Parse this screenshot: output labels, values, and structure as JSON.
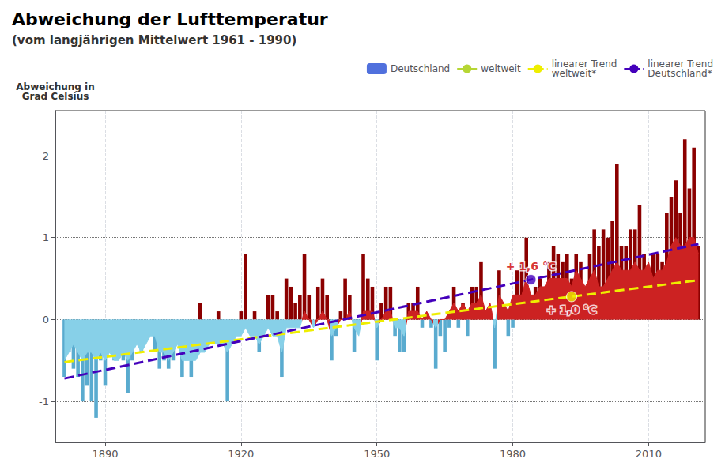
{
  "chart_data": {
    "type": "bar",
    "title": "Abweichung der Lufttemperatur",
    "subtitle": "(vom langjährigen Mittelwert 1961 - 1990)",
    "y_label": "Abweichung in\nGrad Celsius",
    "x": [
      1881,
      1882,
      1883,
      1884,
      1885,
      1886,
      1887,
      1888,
      1889,
      1890,
      1891,
      1892,
      1893,
      1894,
      1895,
      1896,
      1897,
      1898,
      1899,
      1900,
      1901,
      1902,
      1903,
      1904,
      1905,
      1906,
      1907,
      1908,
      1909,
      1910,
      1911,
      1912,
      1913,
      1914,
      1915,
      1916,
      1917,
      1918,
      1919,
      1920,
      1921,
      1922,
      1923,
      1924,
      1925,
      1926,
      1927,
      1928,
      1929,
      1930,
      1931,
      1932,
      1933,
      1934,
      1935,
      1936,
      1937,
      1938,
      1939,
      1940,
      1941,
      1942,
      1943,
      1944,
      1945,
      1946,
      1947,
      1948,
      1949,
      1950,
      1951,
      1952,
      1953,
      1954,
      1955,
      1956,
      1957,
      1958,
      1959,
      1960,
      1961,
      1962,
      1963,
      1964,
      1965,
      1966,
      1967,
      1968,
      1969,
      1970,
      1971,
      1972,
      1973,
      1974,
      1975,
      1976,
      1977,
      1978,
      1979,
      1980,
      1981,
      1982,
      1983,
      1984,
      1985,
      1986,
      1987,
      1988,
      1989,
      1990,
      1991,
      1992,
      1993,
      1994,
      1995,
      1996,
      1997,
      1998,
      1999,
      2000,
      2001,
      2002,
      2003,
      2004,
      2005,
      2006,
      2007,
      2008,
      2009,
      2010,
      2011,
      2012,
      2013,
      2014,
      2015,
      2016,
      2017,
      2018,
      2019,
      2020,
      2021
    ],
    "xlim": [
      1879,
      2022.5
    ],
    "xticks": [
      1890,
      1920,
      1950,
      1980,
      2010
    ],
    "ylim": [
      -1.5,
      2.55
    ],
    "yticks": [
      -1,
      0,
      1,
      2
    ],
    "grid": true,
    "legend": "top",
    "series": [
      {
        "name": "Deutschland",
        "type": "bar",
        "values": [
          -0.7,
          -0.4,
          -0.6,
          -0.7,
          -1.0,
          -0.8,
          -1.0,
          -1.2,
          -0.5,
          -0.8,
          -0.4,
          -0.5,
          -0.3,
          -0.5,
          -0.9,
          -0.5,
          -0.3,
          -0.4,
          -0.2,
          -0.1,
          -0.4,
          -0.6,
          -0.5,
          -0.6,
          -0.5,
          -0.1,
          -0.7,
          -0.5,
          -0.7,
          -0.3,
          0.2,
          -0.3,
          -0.2,
          -0.1,
          0.1,
          -0.3,
          -1.0,
          -0.1,
          -0.1,
          0.1,
          0.8,
          -0.1,
          0.1,
          -0.4,
          0.0,
          0.3,
          0.3,
          0.1,
          -0.7,
          0.5,
          0.4,
          0.2,
          0.3,
          0.8,
          0.3,
          0.0,
          0.4,
          0.5,
          0.3,
          -0.5,
          -0.2,
          0.1,
          0.5,
          0.3,
          -0.4,
          -0.1,
          0.8,
          0.5,
          0.4,
          -0.5,
          0.2,
          0.4,
          0.4,
          -0.2,
          -0.4,
          -0.4,
          0.2,
          0.2,
          0.4,
          -0.1,
          0.0,
          -0.1,
          -0.6,
          -0.2,
          -0.4,
          -0.1,
          0.4,
          -0.1,
          0.2,
          -0.2,
          0.4,
          0.4,
          0.7,
          -0.0,
          0.1,
          -0.6,
          0.6,
          0.0,
          -0.2,
          -0.1,
          0.6,
          0.7,
          1.0,
          0.3,
          0.4,
          0.5,
          0.4,
          0.7,
          0.9,
          0.8,
          0.7,
          0.8,
          0.5,
          0.8,
          0.7,
          0.3,
          0.8,
          1.1,
          0.9,
          1.1,
          1.0,
          1.2,
          1.9,
          0.9,
          0.9,
          1.1,
          1.1,
          1.4,
          0.8,
          0.4,
          0.8,
          0.8,
          0.7,
          1.3,
          1.5,
          1.7,
          1.3,
          2.2,
          1.6,
          2.1,
          0.9
        ],
        "colors": [
          "#5aabcf",
          "#5aabcf",
          "#5aabcf",
          "#5aabcf",
          "#5aabcf",
          "#5aabcf",
          "#5aabcf",
          "#5aabcf",
          "#5aabcf",
          "#5aabcf",
          "#5aabcf",
          "#5aabcf",
          "#5aabcf",
          "#5aabcf",
          "#5aabcf",
          "#5aabcf",
          "#5aabcf",
          "#5aabcf",
          "#5aabcf",
          "#5aabcf",
          "#5aabcf",
          "#5aabcf",
          "#5aabcf",
          "#5aabcf",
          "#5aabcf",
          "#5aabcf",
          "#5aabcf",
          "#5aabcf",
          "#5aabcf",
          "#5aabcf",
          "#8b0000",
          "#5aabcf",
          "#5aabcf",
          "#5aabcf",
          "#8b0000",
          "#5aabcf",
          "#5aabcf",
          "#5aabcf",
          "#5aabcf",
          "#8b0000",
          "#8b0000",
          "#5aabcf",
          "#8b0000",
          "#5aabcf",
          "#8b0000",
          "#8b0000",
          "#8b0000",
          "#8b0000",
          "#5aabcf",
          "#8b0000",
          "#8b0000",
          "#8b0000",
          "#8b0000",
          "#8b0000",
          "#8b0000",
          "#8b0000",
          "#8b0000",
          "#8b0000",
          "#8b0000",
          "#5aabcf",
          "#5aabcf",
          "#8b0000",
          "#8b0000",
          "#8b0000",
          "#5aabcf",
          "#5aabcf",
          "#8b0000",
          "#8b0000",
          "#8b0000",
          "#5aabcf",
          "#8b0000",
          "#8b0000",
          "#8b0000",
          "#5aabcf",
          "#5aabcf",
          "#5aabcf",
          "#8b0000",
          "#8b0000",
          "#8b0000",
          "#5aabcf",
          "#8b0000",
          "#5aabcf",
          "#5aabcf",
          "#5aabcf",
          "#5aabcf",
          "#5aabcf",
          "#8b0000",
          "#5aabcf",
          "#8b0000",
          "#5aabcf",
          "#8b0000",
          "#8b0000",
          "#8b0000",
          "#8b0000",
          "#8b0000",
          "#5aabcf",
          "#8b0000",
          "#8b0000",
          "#5aabcf",
          "#5aabcf",
          "#8b0000",
          "#8b0000",
          "#8b0000",
          "#8b0000",
          "#8b0000",
          "#8b0000",
          "#8b0000",
          "#8b0000",
          "#8b0000",
          "#8b0000",
          "#8b0000",
          "#8b0000",
          "#8b0000",
          "#8b0000",
          "#8b0000",
          "#8b0000",
          "#8b0000",
          "#8b0000",
          "#8b0000",
          "#8b0000",
          "#8b0000",
          "#8b0000",
          "#8b0000",
          "#8b0000",
          "#8b0000",
          "#8b0000",
          "#8b0000",
          "#8b0000",
          "#8b0000",
          "#8b0000",
          "#8b0000",
          "#8b0000",
          "#8b0000",
          "#8b0000",
          "#8b0000",
          "#8b0000",
          "#8b0000",
          "#8b0000",
          "#8b0000",
          "#8b0000",
          "#8b0000"
        ]
      },
      {
        "name": "weltweit",
        "type": "area",
        "values": [
          -0.5,
          -0.4,
          -0.3,
          -0.4,
          -0.5,
          -0.4,
          -0.4,
          -0.5,
          -0.4,
          -0.5,
          -0.4,
          -0.5,
          -0.5,
          -0.4,
          -0.5,
          -0.4,
          -0.3,
          -0.4,
          -0.3,
          -0.2,
          -0.2,
          -0.4,
          -0.4,
          -0.5,
          -0.4,
          -0.3,
          -0.5,
          -0.5,
          -0.5,
          -0.5,
          -0.4,
          -0.4,
          -0.3,
          -0.3,
          -0.3,
          -0.3,
          -0.4,
          -0.3,
          -0.2,
          -0.2,
          -0.1,
          -0.2,
          -0.2,
          -0.3,
          -0.2,
          -0.1,
          -0.2,
          -0.2,
          -0.4,
          -0.1,
          -0.1,
          -0.1,
          -0.1,
          0.1,
          0.0,
          -0.1,
          0.0,
          0.1,
          0.0,
          -0.2,
          -0.1,
          0.0,
          0.0,
          0.1,
          -0.1,
          -0.2,
          0.1,
          0.1,
          0.1,
          -0.1,
          0.0,
          0.1,
          0.1,
          -0.1,
          -0.1,
          -0.2,
          0.1,
          0.1,
          0.1,
          0.0,
          0.1,
          0.0,
          -0.1,
          0.0,
          0.0,
          0.1,
          0.2,
          0.1,
          0.2,
          0.1,
          0.2,
          0.2,
          0.3,
          0.1,
          0.2,
          -0.1,
          0.3,
          0.2,
          0.1,
          0.3,
          0.3,
          0.3,
          0.5,
          0.3,
          0.3,
          0.4,
          0.4,
          0.5,
          0.5,
          0.5,
          0.5,
          0.5,
          0.4,
          0.6,
          0.5,
          0.4,
          0.5,
          0.6,
          0.4,
          0.4,
          0.5,
          0.6,
          0.7,
          0.6,
          0.6,
          0.6,
          0.7,
          0.6,
          0.6,
          0.7,
          0.5,
          0.6,
          0.6,
          0.7,
          0.9,
          1.0,
          0.9,
          0.9,
          1.0,
          1.0,
          0.8
        ],
        "colors": [
          "#87d0e8",
          "#87d0e8",
          "#87d0e8",
          "#87d0e8",
          "#87d0e8",
          "#87d0e8",
          "#87d0e8",
          "#87d0e8",
          "#87d0e8",
          "#87d0e8",
          "#87d0e8",
          "#87d0e8",
          "#87d0e8",
          "#87d0e8",
          "#87d0e8",
          "#87d0e8",
          "#87d0e8",
          "#87d0e8",
          "#87d0e8",
          "#87d0e8",
          "#87d0e8",
          "#87d0e8",
          "#87d0e8",
          "#87d0e8",
          "#87d0e8",
          "#87d0e8",
          "#87d0e8",
          "#87d0e8",
          "#87d0e8",
          "#87d0e8",
          "#87d0e8",
          "#87d0e8",
          "#87d0e8",
          "#87d0e8",
          "#87d0e8",
          "#87d0e8",
          "#87d0e8",
          "#87d0e8",
          "#87d0e8",
          "#87d0e8",
          "#87d0e8",
          "#87d0e8",
          "#87d0e8",
          "#87d0e8",
          "#87d0e8",
          "#87d0e8",
          "#87d0e8",
          "#87d0e8",
          "#87d0e8",
          "#87d0e8",
          "#87d0e8",
          "#87d0e8",
          "#87d0e8",
          "#cc2222",
          "#cc2222",
          "#87d0e8",
          "#cc2222",
          "#cc2222",
          "#cc2222",
          "#87d0e8",
          "#87d0e8",
          "#cc2222",
          "#cc2222",
          "#cc2222",
          "#87d0e8",
          "#87d0e8",
          "#cc2222",
          "#cc2222",
          "#cc2222",
          "#87d0e8",
          "#cc2222",
          "#cc2222",
          "#cc2222",
          "#87d0e8",
          "#87d0e8",
          "#87d0e8",
          "#cc2222",
          "#cc2222",
          "#cc2222",
          "#cc2222",
          "#cc2222",
          "#cc2222",
          "#87d0e8",
          "#cc2222",
          "#cc2222",
          "#cc2222",
          "#cc2222",
          "#cc2222",
          "#cc2222",
          "#cc2222",
          "#cc2222",
          "#cc2222",
          "#cc2222",
          "#cc2222",
          "#cc2222",
          "#87d0e8",
          "#cc2222",
          "#cc2222",
          "#cc2222",
          "#cc2222",
          "#cc2222",
          "#cc2222",
          "#cc2222",
          "#cc2222",
          "#cc2222",
          "#cc2222",
          "#cc2222",
          "#cc2222",
          "#cc2222",
          "#cc2222",
          "#cc2222",
          "#cc2222",
          "#cc2222",
          "#cc2222",
          "#cc2222",
          "#cc2222",
          "#cc2222",
          "#cc2222",
          "#cc2222",
          "#cc2222",
          "#cc2222",
          "#cc2222",
          "#cc2222",
          "#cc2222",
          "#cc2222",
          "#cc2222",
          "#cc2222",
          "#cc2222",
          "#cc2222",
          "#cc2222",
          "#cc2222",
          "#cc2222",
          "#cc2222",
          "#cc2222",
          "#cc2222",
          "#cc2222",
          "#cc2222",
          "#cc2222",
          "#cc2222",
          "#cc2222",
          "#cc2222"
        ]
      },
      {
        "name": "linearer Trend\nweltweit*",
        "type": "line",
        "line_style": "dashed",
        "color": "#eeee00",
        "x": [
          1881,
          2021
        ],
        "values": [
          -0.52,
          0.48
        ]
      },
      {
        "name": "linearer Trend\nDeutschland*",
        "type": "line",
        "line_style": "dashed",
        "color": "#4400bb",
        "x": [
          1881,
          2021
        ],
        "values": [
          -0.72,
          0.92
        ]
      },
      {
        "type": "scatter",
        "marker": "circle",
        "color": "#4400bb",
        "x": [
          1984
        ],
        "values": [
          0.4865714285714286
        ]
      },
      {
        "type": "scatter",
        "marker": "circle",
        "color": "#eeee00",
        "x": [
          1993
        ],
        "values": [
          0.28
        ]
      }
    ],
    "annotations": [
      {
        "text": "+ 1,6 °C",
        "x": 1984,
        "y": 0.4865714285714286,
        "color": "#cc0000"
      },
      {
        "text": "+ 1,0 °C",
        "x": 1993,
        "y": 0.28,
        "color": "#cc0000"
      }
    ]
  }
}
